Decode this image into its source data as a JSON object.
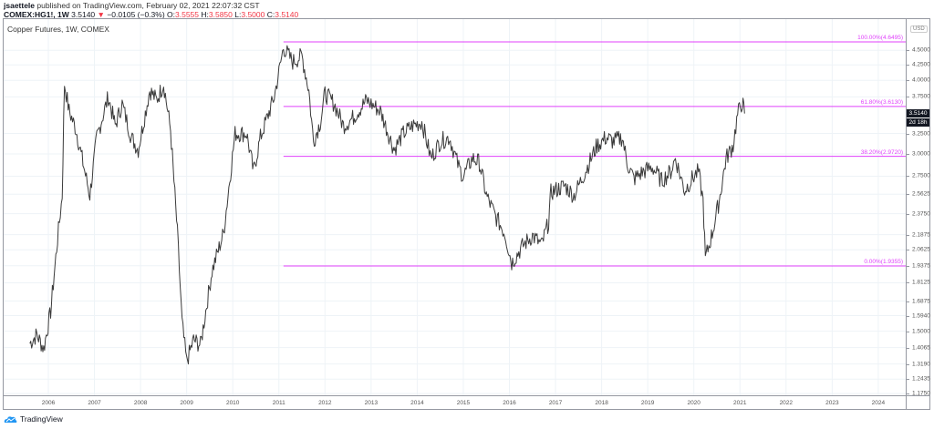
{
  "header": {
    "author": "jsaettele",
    "published_text": "published on TradingView.com, February 02, 2021 22:07:32 CST",
    "symbol": "COMEX:HG1!, 1W",
    "last": "3.5140",
    "change_arrow": "▼",
    "change": "−0.0105 (−0.3%)",
    "open_label": "O:",
    "open": "3.5555",
    "high_label": "H:",
    "high": "3.5850",
    "low_label": "L:",
    "low": "3.5000",
    "close_label": "C:",
    "close": "3.5140"
  },
  "legend": {
    "title": "Copper Futures, 1W, COMEX"
  },
  "price_axis": {
    "currency": "USD",
    "last_price_tag": "3.5140",
    "countdown_tag": "2d 18h"
  },
  "footer": {
    "logo_text": "TradingView"
  },
  "colors": {
    "fib": "#e040fb",
    "price": "#3a3a3a",
    "grid": "#eef3f7",
    "down": "#f23645"
  },
  "chart_data": {
    "type": "line",
    "title": "Copper Futures, 1W, COMEX",
    "xlabel": "",
    "ylabel": "USD",
    "scale": "log",
    "grid": true,
    "ylim": [
      1.175,
      4.75
    ],
    "xlim": [
      2005.6,
      2024.6
    ],
    "x_ticks": [
      "2006",
      "2007",
      "2008",
      "2009",
      "2010",
      "2011",
      "2012",
      "2013",
      "2014",
      "2015",
      "2016",
      "2017",
      "2018",
      "2019",
      "2020",
      "2021",
      "2022",
      "2023",
      "2024"
    ],
    "y_ticks": [
      "4.5000",
      "4.2500",
      "4.0000",
      "3.7500",
      "3.2500",
      "3.0000",
      "2.7500",
      "2.5625",
      "2.3750",
      "2.1875",
      "2.0625",
      "1.9375",
      "1.8125",
      "1.6875",
      "1.5940",
      "1.5000",
      "1.4065",
      "1.3190",
      "1.2435",
      "1.1750"
    ],
    "series": [
      {
        "name": "HG1! weekly close (approx.)",
        "x": [
          2005.6,
          2005.75,
          2005.9,
          2006.05,
          2006.2,
          2006.3,
          2006.35,
          2006.45,
          2006.6,
          2006.75,
          2006.9,
          2007.05,
          2007.3,
          2007.45,
          2007.6,
          2007.8,
          2007.95,
          2008.2,
          2008.35,
          2008.5,
          2008.65,
          2008.8,
          2008.9,
          2009.0,
          2009.15,
          2009.3,
          2009.55,
          2009.8,
          2010.05,
          2010.3,
          2010.45,
          2010.6,
          2010.9,
          2011.1,
          2011.3,
          2011.5,
          2011.65,
          2011.75,
          2011.9,
          2012.0,
          2012.2,
          2012.4,
          2012.6,
          2012.9,
          2013.1,
          2013.2,
          2013.5,
          2013.7,
          2013.9,
          2014.1,
          2014.3,
          2014.5,
          2014.7,
          2014.9,
          2015.0,
          2015.2,
          2015.35,
          2015.5,
          2015.7,
          2015.9,
          2016.05,
          2016.3,
          2016.5,
          2016.7,
          2016.85,
          2016.9,
          2017.2,
          2017.4,
          2017.6,
          2017.9,
          2018.1,
          2018.25,
          2018.45,
          2018.55,
          2018.7,
          2018.9,
          2019.1,
          2019.3,
          2019.5,
          2019.6,
          2019.8,
          2020.0,
          2020.1,
          2020.2,
          2020.25,
          2020.4,
          2020.55,
          2020.7,
          2020.85,
          2020.95,
          2021.05,
          2021.1
        ],
        "values": [
          1.43,
          1.48,
          1.4,
          1.62,
          2.15,
          2.55,
          3.95,
          3.55,
          3.3,
          2.9,
          2.55,
          3.2,
          3.75,
          3.35,
          3.65,
          3.2,
          3.05,
          3.85,
          3.7,
          3.95,
          3.3,
          2.2,
          1.55,
          1.33,
          1.45,
          1.42,
          1.9,
          2.2,
          3.25,
          3.25,
          2.8,
          3.2,
          3.75,
          4.55,
          4.3,
          4.4,
          3.85,
          3.15,
          3.4,
          3.8,
          3.65,
          3.35,
          3.45,
          3.7,
          3.6,
          3.55,
          3.05,
          3.25,
          3.35,
          3.4,
          2.95,
          3.15,
          3.2,
          2.85,
          2.75,
          2.95,
          2.9,
          2.55,
          2.35,
          2.2,
          1.96,
          2.1,
          2.18,
          2.1,
          2.3,
          2.58,
          2.65,
          2.55,
          2.75,
          3.1,
          3.2,
          3.15,
          3.2,
          2.9,
          2.72,
          2.8,
          2.85,
          2.7,
          2.8,
          2.95,
          2.6,
          2.75,
          2.8,
          2.5,
          1.99,
          2.2,
          2.5,
          2.95,
          3.1,
          3.5,
          3.68,
          3.514
        ]
      }
    ],
    "annotations": [
      {
        "label": "100.00%(4.6495)",
        "value": 4.6495
      },
      {
        "label": "61.80%(3.6130)",
        "value": 3.613
      },
      {
        "label": "38.20%(2.9720)",
        "value": 2.972
      },
      {
        "label": "0.00%(1.9355)",
        "value": 1.9355
      }
    ],
    "annotation_start_x": 2011.1
  }
}
